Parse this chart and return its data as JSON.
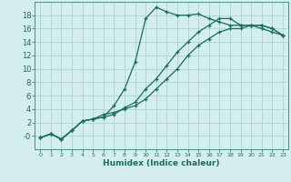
{
  "xlabel": "Humidex (Indice chaleur)",
  "bg_color": "#d4eeee",
  "grid_color": "#b0d8d8",
  "line_color": "#1a6b60",
  "xlim": [
    -0.5,
    23.5
  ],
  "ylim": [
    -2,
    20
  ],
  "xticks": [
    0,
    1,
    2,
    3,
    4,
    5,
    6,
    7,
    8,
    9,
    10,
    11,
    12,
    13,
    14,
    15,
    16,
    17,
    18,
    19,
    20,
    21,
    22,
    23
  ],
  "yticks": [
    0,
    2,
    4,
    6,
    8,
    10,
    12,
    14,
    16,
    18
  ],
  "ytick_labels": [
    "-0",
    "2",
    "4",
    "6",
    "8",
    "10",
    "12",
    "14",
    "16",
    "18"
  ],
  "series": [
    {
      "x": [
        0,
        1,
        2,
        3,
        4,
        5,
        6,
        7,
        8,
        9,
        10,
        11,
        12,
        13,
        14,
        15,
        16,
        17,
        18,
        19,
        20,
        21,
        22,
        23
      ],
      "y": [
        -0.3,
        0.3,
        -0.5,
        0.8,
        2.2,
        2.5,
        2.8,
        3.2,
        4.2,
        5.0,
        7.0,
        8.5,
        10.5,
        12.5,
        14.0,
        15.5,
        16.5,
        17.5,
        17.5,
        16.5,
        16.5,
        16.0,
        15.5,
        15.0
      ]
    },
    {
      "x": [
        0,
        1,
        2,
        3,
        4,
        5,
        6,
        7,
        8,
        9,
        10,
        11,
        12,
        13,
        14,
        15,
        16,
        17,
        18,
        19,
        20,
        21,
        22,
        23
      ],
      "y": [
        -0.3,
        0.3,
        -0.5,
        0.8,
        2.2,
        2.5,
        2.8,
        4.5,
        7.0,
        11.0,
        17.5,
        19.2,
        18.5,
        18.0,
        18.0,
        18.2,
        17.5,
        17.0,
        16.5,
        16.5,
        16.5,
        16.5,
        16.0,
        15.0
      ]
    },
    {
      "x": [
        0,
        1,
        2,
        3,
        4,
        5,
        6,
        7,
        8,
        9,
        10,
        11,
        12,
        13,
        14,
        15,
        16,
        17,
        18,
        19,
        20,
        21,
        22,
        23
      ],
      "y": [
        -0.3,
        0.3,
        -0.5,
        0.8,
        2.2,
        2.5,
        3.2,
        3.5,
        4.0,
        4.5,
        5.5,
        7.0,
        8.5,
        10.0,
        12.0,
        13.5,
        14.5,
        15.5,
        16.0,
        16.0,
        16.5,
        16.5,
        16.0,
        15.0
      ]
    }
  ]
}
